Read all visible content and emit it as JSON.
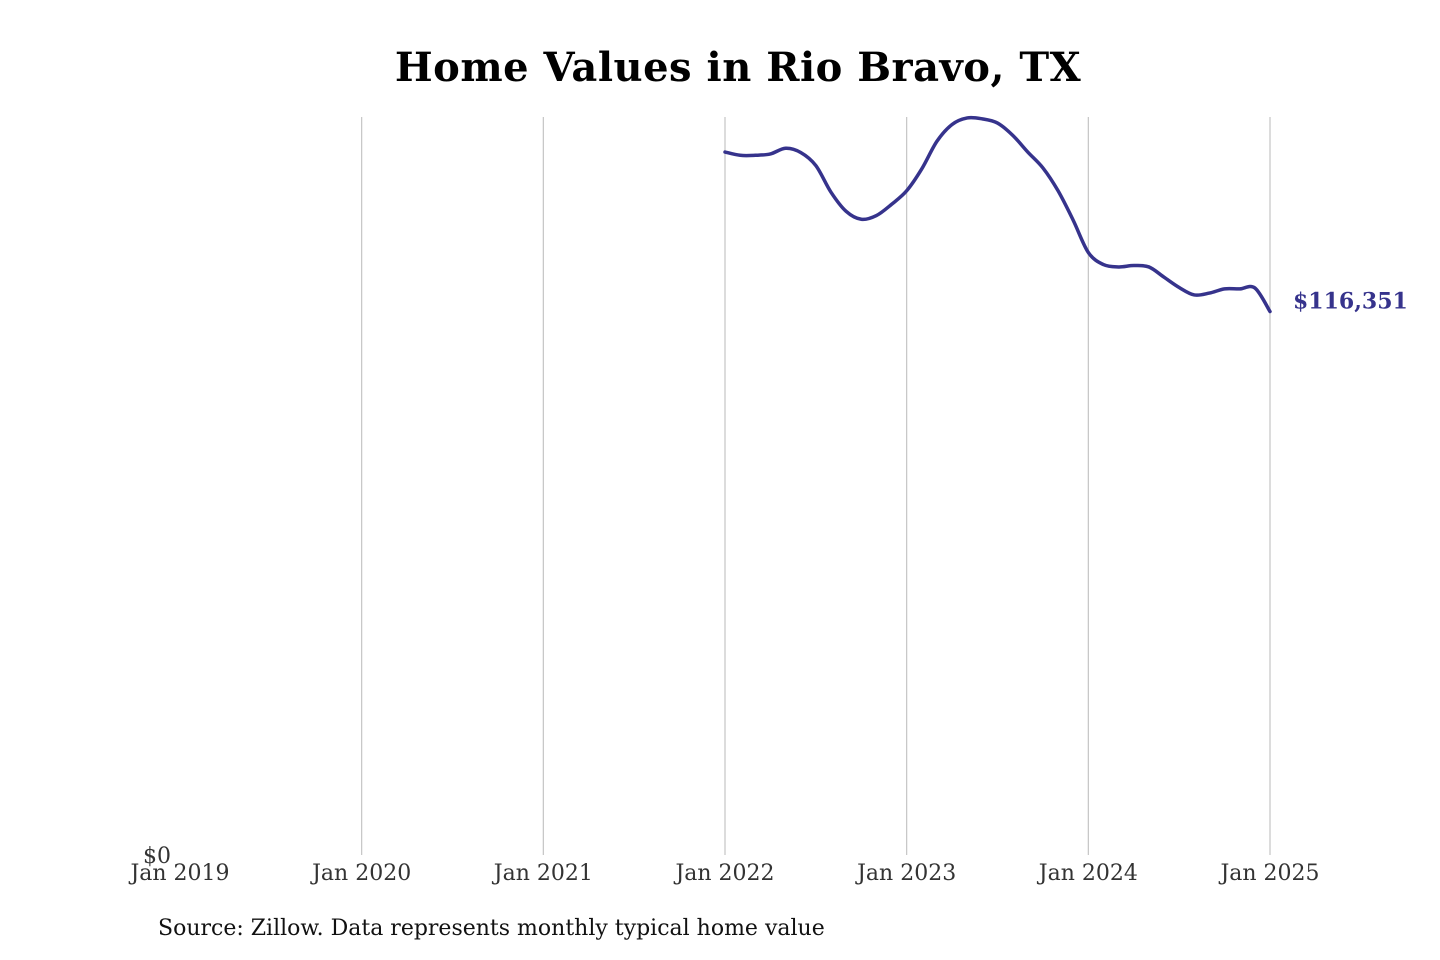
{
  "chart_data": {
    "type": "line",
    "title": "Home Values in Rio Bravo, TX",
    "xlabel": "",
    "ylabel": "",
    "x_ticks": [
      "Jan 2019",
      "Jan 2020",
      "Jan 2021",
      "Jan 2022",
      "Jan 2023",
      "Jan 2024",
      "Jan 2025"
    ],
    "y_ticks": [
      "$0"
    ],
    "xlim": [
      "2019-01",
      "2025-01"
    ],
    "ylim": [
      0,
      158000
    ],
    "grid": "vertical",
    "end_label": "$116,351",
    "series": [
      {
        "color": "#36338c",
        "x": [
          "2022-01",
          "2022-02",
          "2022-03",
          "2022-04",
          "2022-05",
          "2022-06",
          "2022-07",
          "2022-08",
          "2022-09",
          "2022-10",
          "2022-11",
          "2022-12",
          "2023-01",
          "2023-02",
          "2023-03",
          "2023-04",
          "2023-05",
          "2023-06",
          "2023-07",
          "2023-08",
          "2023-09",
          "2023-10",
          "2023-11",
          "2023-12",
          "2024-01",
          "2024-02",
          "2024-03",
          "2024-04",
          "2024-05",
          "2024-06",
          "2024-07",
          "2024-08",
          "2024-09",
          "2024-10",
          "2024-11",
          "2024-12",
          "2025-01"
        ],
        "values": [
          150500,
          149800,
          149800,
          150100,
          151300,
          150400,
          147600,
          141900,
          137800,
          136100,
          136900,
          139300,
          142200,
          146900,
          152800,
          156400,
          157800,
          157600,
          156700,
          154100,
          150500,
          147100,
          142200,
          135900,
          129000,
          126400,
          125900,
          126200,
          125900,
          123700,
          121500,
          119900,
          120300,
          121200,
          121200,
          121400,
          116351
        ]
      }
    ]
  },
  "source_note": "Source: Zillow. Data represents monthly typical home value"
}
